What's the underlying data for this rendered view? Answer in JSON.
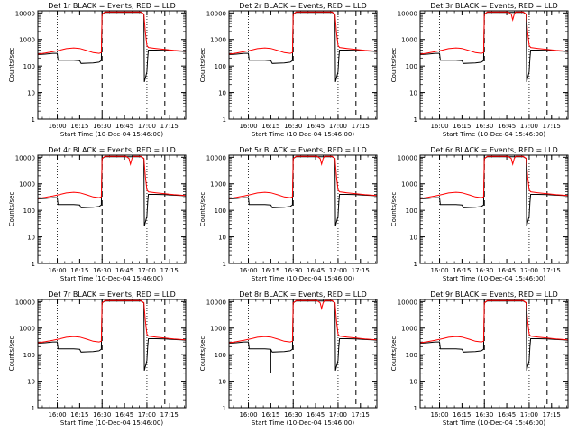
{
  "chart_data": {
    "type": "line",
    "x_tick_labels": [
      "16:00",
      "16:15",
      "16:30",
      "16:45",
      "17:00",
      "17:15"
    ],
    "xlabel": "Start Time (10-Dec-04 15:46:00)",
    "ylabel": "Counts/sec",
    "y_scale": "log",
    "ylim": [
      1,
      12000
    ],
    "y_tick_labels": [
      "1",
      "10",
      "100",
      "1000",
      "10000"
    ],
    "x_range_min": [
      1,
      100
    ],
    "dotted_vlines_min": [
      14,
      74
    ],
    "dashed_vlines_min": [
      44,
      86
    ],
    "colors": {
      "events": "#000000",
      "lld": "#ff0000"
    },
    "series_key": [
      "BLACK = Events",
      "RED = LLD"
    ],
    "panels": [
      {
        "title": "Det 1r BLACK = Events, RED = LLD",
        "x_tick_labels": [
          "16:00",
          "16:15",
          "16:30",
          "16:45",
          "17:00",
          "17:15"
        ]
      },
      {
        "title": "Det 2r BLACK = Events, RED = LLD",
        "x_tick_labels": [
          "16:00",
          "16:15",
          "16:30",
          "16:45",
          "17:00",
          "17:15"
        ]
      },
      {
        "title": "Det 3r BLACK = Events, RED = LLD",
        "x_tick_labels": [
          "16:00",
          "16:15",
          "16:30",
          "16:45",
          "17:00",
          "17:15"
        ]
      },
      {
        "title": "Det 4r BLACK = Events, RED = LLD",
        "x_tick_labels": [
          "16:00",
          "16:15",
          "16:30",
          "16:45",
          "17:00",
          "17:15"
        ]
      },
      {
        "title": "Det 5r BLACK = Events, RED = LLD",
        "x_tick_labels": [
          "16:00",
          "16:15",
          "16:30",
          "16:45",
          "17:00",
          "17:15"
        ]
      },
      {
        "title": "Det 6r BLACK = Events, RED = LLD",
        "x_tick_labels": [
          "16:00",
          "16:15",
          "16:30",
          "16:45",
          "17:00",
          "17:15"
        ]
      },
      {
        "title": "Det 7r BLACK = Events, RED = LLD",
        "x_tick_labels": [
          "16:00",
          "16:15",
          "16:30",
          "16:45",
          "17:00",
          "17:15"
        ]
      },
      {
        "title": "Det 8r BLACK = Events, RED = LLD",
        "x_tick_labels": [
          "16:00",
          "16:15",
          "16:30",
          "16:45",
          "17:00",
          "17:15"
        ]
      },
      {
        "title": "Det 9r BLACK = Events, RED = LLD",
        "x_tick_labels": [
          "16:00",
          "16:15",
          "16:30",
          "16:45",
          "17:00",
          "17:15"
        ]
      }
    ],
    "x_tick_minutes": [
      14,
      29,
      44,
      59,
      74,
      89
    ],
    "series": [
      {
        "name": "Events",
        "x": [
          1,
          6,
          11,
          14,
          14.5,
          20,
          25,
          29,
          30,
          34,
          38,
          42,
          43.5,
          44,
          46,
          60,
          70,
          72,
          72.3,
          74,
          74.5,
          75,
          80,
          86,
          92,
          97,
          100
        ],
        "y": [
          270,
          280,
          300,
          300,
          165,
          165,
          165,
          160,
          125,
          128,
          130,
          140,
          160,
          9000,
          10500,
          10500,
          10500,
          9000,
          25,
          60,
          200,
          400,
          400,
          390,
          370,
          360,
          350
        ]
      },
      {
        "name": "LLD",
        "x": [
          1,
          6,
          11,
          16,
          20,
          25,
          29,
          34,
          38,
          42,
          43.5,
          44,
          46,
          60,
          70,
          72,
          73,
          74,
          75,
          80,
          86,
          92,
          97,
          100
        ],
        "y": [
          280,
          310,
          350,
          400,
          450,
          480,
          460,
          380,
          320,
          300,
          320,
          9000,
          10800,
          10800,
          10800,
          9000,
          1800,
          600,
          500,
          460,
          420,
          390,
          370,
          360
        ]
      }
    ],
    "panel_notes": {
      "dip_panels": [
        "Det 3r",
        "Det 4r",
        "Det 5r",
        "Det 6r",
        "Det 8r"
      ],
      "spike_panel": "Det 8r"
    }
  }
}
